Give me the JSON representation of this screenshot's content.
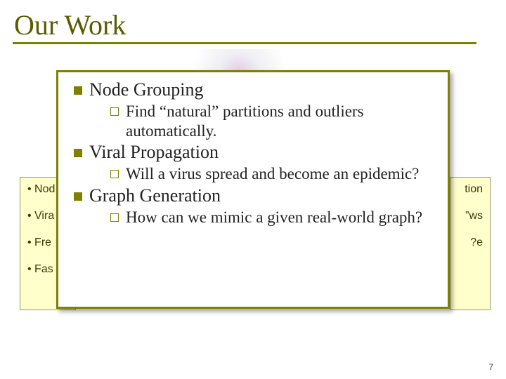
{
  "colors": {
    "accent": "#808000",
    "title_color": "#5b5b00",
    "card_border": "#808000",
    "card_bg": "#ffffff",
    "yellow_box_bg": "#ffffcc",
    "yellow_box_border": "#999966",
    "page_bg": "#ffffff",
    "bullet_fill": "#808000",
    "text_color": "#222222"
  },
  "typography": {
    "title_family": "Times New Roman",
    "title_size_pt": 30,
    "heading_size_pt": 20,
    "body_size_pt": 17
  },
  "title": "Our Work",
  "card": {
    "items": [
      {
        "heading": "Node Grouping",
        "sub": "Find “natural” partitions and outliers automatically."
      },
      {
        "heading": "Viral Propagation",
        "sub": "Will a virus spread and become an epidemic?"
      },
      {
        "heading": "Graph Generation",
        "sub": "How can we mimic a given real-world graph?"
      }
    ]
  },
  "yellow_left": {
    "lines": [
      "• Nod",
      "• Vira",
      "• Fre",
      "• Fas"
    ]
  },
  "yellow_right": {
    "lines": [
      "tion",
      "ws”",
      "e?",
      ""
    ]
  },
  "page_number": "7"
}
